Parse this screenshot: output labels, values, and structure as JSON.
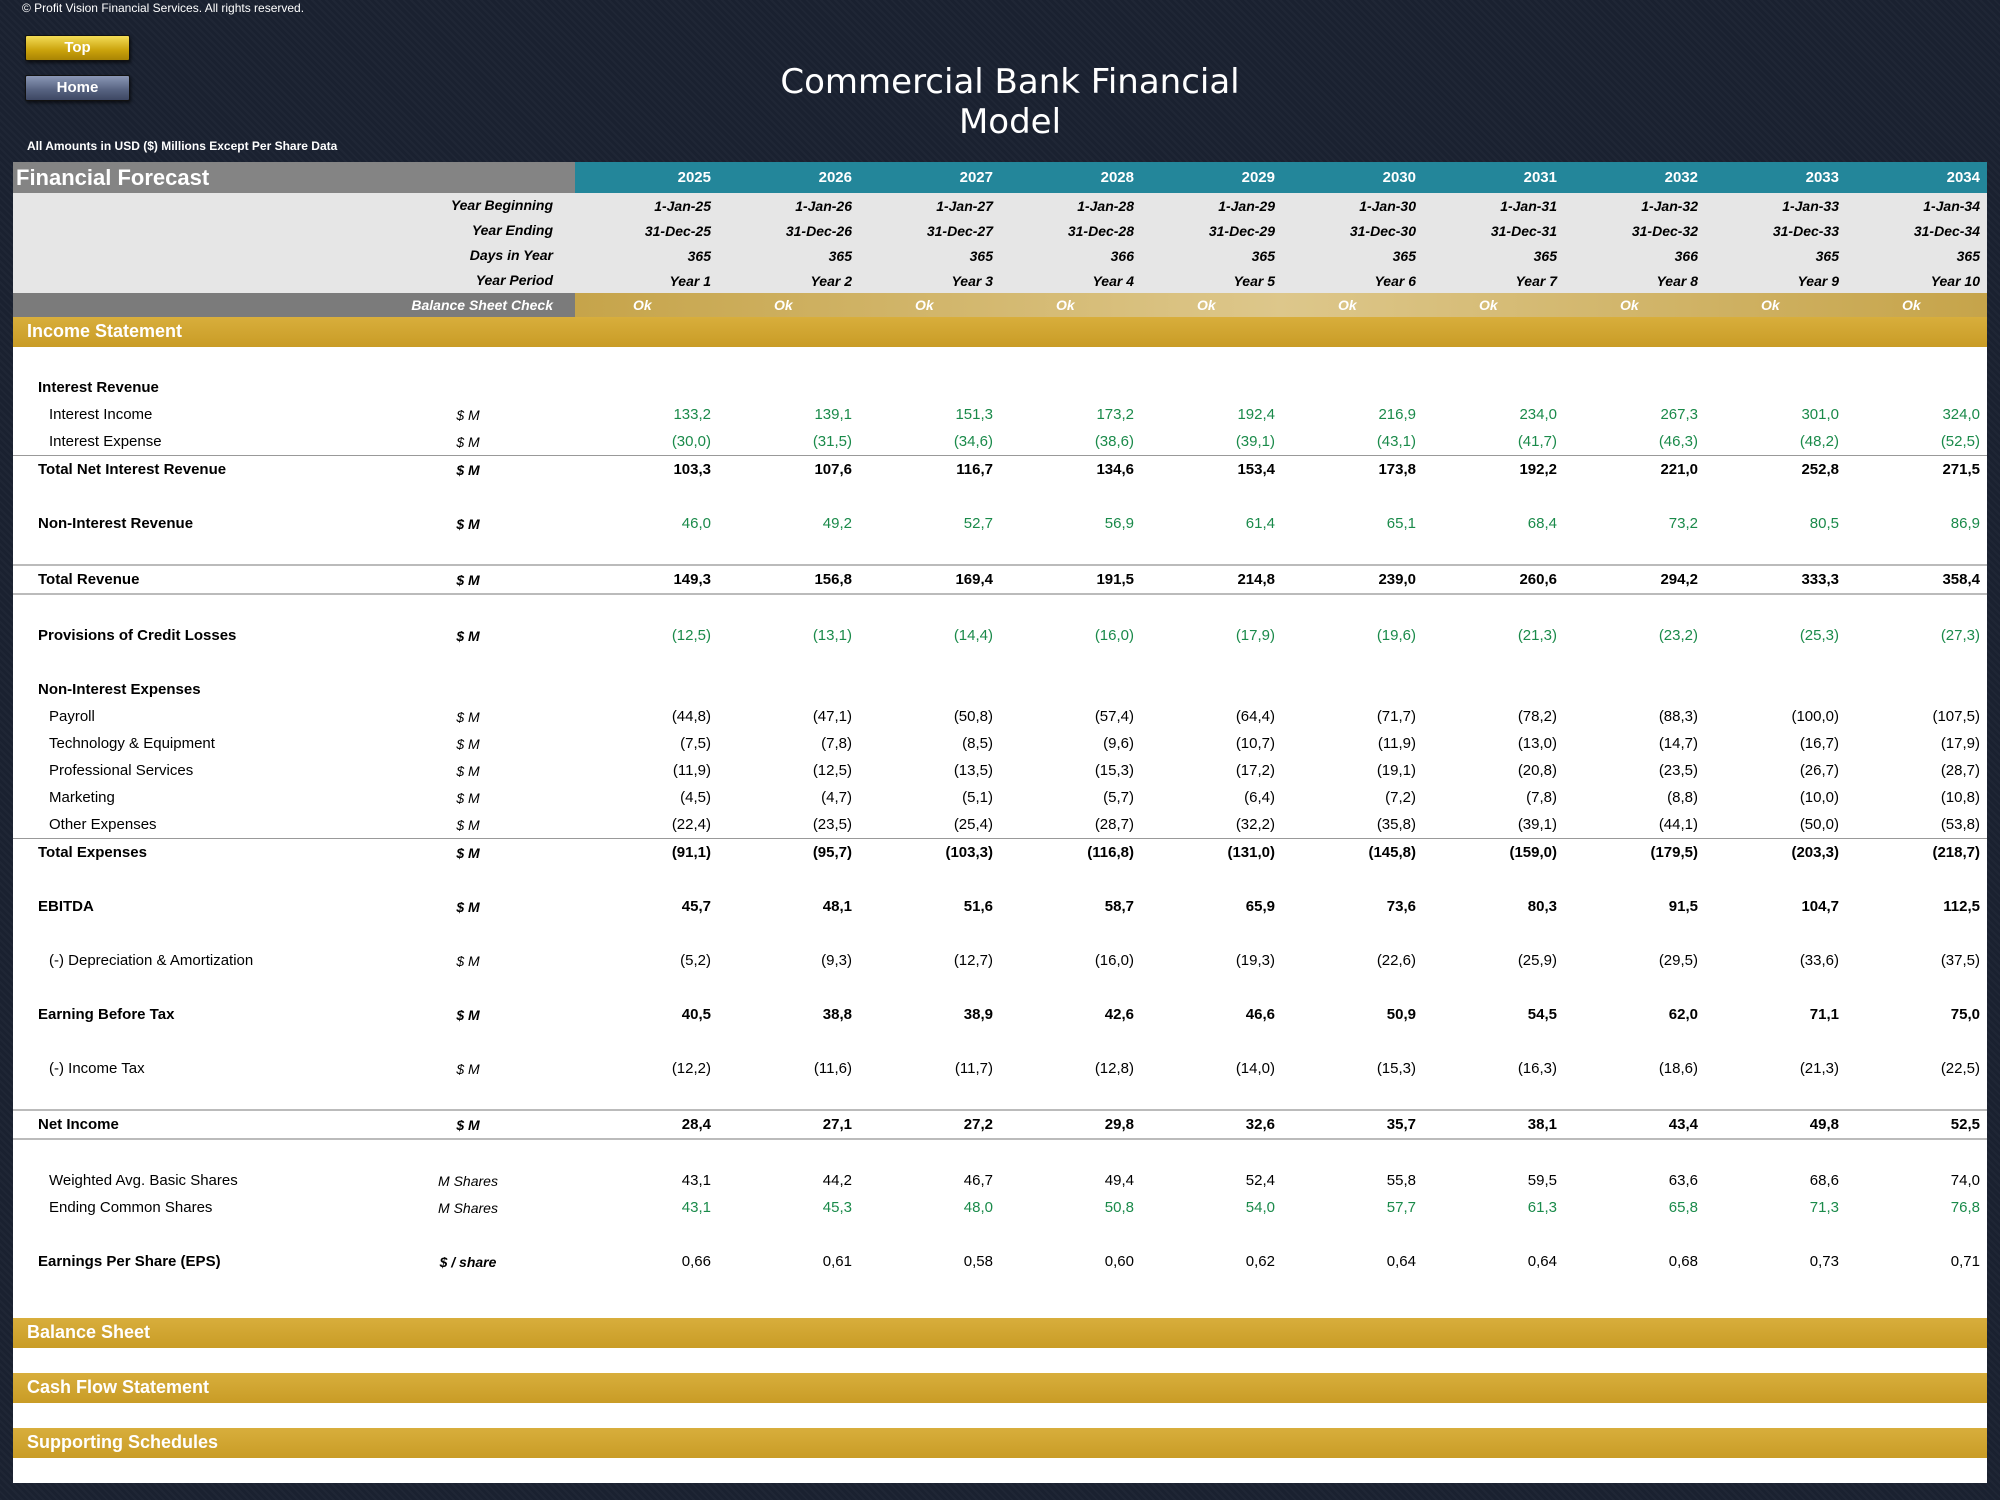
{
  "header": {
    "copyright": "© Profit Vision Financial Services. All rights reserved.",
    "top_button": "Top",
    "home_button": "Home",
    "title": "Commercial Bank Financial Model",
    "units_note": "All Amounts in  USD ($) Millions Except Per Share Data"
  },
  "forecast": {
    "title": "Financial Forecast",
    "years": [
      "2025",
      "2026",
      "2027",
      "2028",
      "2029",
      "2030",
      "2031",
      "2032",
      "2033",
      "2034"
    ],
    "info_rows": [
      {
        "label": "Year Beginning",
        "values": [
          "1-Jan-25",
          "1-Jan-26",
          "1-Jan-27",
          "1-Jan-28",
          "1-Jan-29",
          "1-Jan-30",
          "1-Jan-31",
          "1-Jan-32",
          "1-Jan-33",
          "1-Jan-34"
        ]
      },
      {
        "label": "Year Ending",
        "values": [
          "31-Dec-25",
          "31-Dec-26",
          "31-Dec-27",
          "31-Dec-28",
          "31-Dec-29",
          "31-Dec-30",
          "31-Dec-31",
          "31-Dec-32",
          "31-Dec-33",
          "31-Dec-34"
        ]
      },
      {
        "label": "Days in Year",
        "values": [
          "365",
          "365",
          "365",
          "366",
          "365",
          "365",
          "365",
          "366",
          "365",
          "365"
        ]
      },
      {
        "label": "Year Period",
        "values": [
          "Year 1",
          "Year 2",
          "Year 3",
          "Year 4",
          "Year 5",
          "Year 6",
          "Year 7",
          "Year 8",
          "Year 9",
          "Year 10"
        ]
      }
    ],
    "balance_check": {
      "label": "Balance Sheet Check",
      "values": [
        "Ok",
        "Ok",
        "Ok",
        "Ok",
        "Ok",
        "Ok",
        "Ok",
        "Ok",
        "Ok",
        "Ok"
      ]
    }
  },
  "income_statement": {
    "title": "Income Statement",
    "interest_revenue_heading": "Interest Revenue",
    "interest_income": {
      "label": "Interest Income",
      "unit": "$ M",
      "values": [
        "133,2",
        "139,1",
        "151,3",
        "173,2",
        "192,4",
        "216,9",
        "234,0",
        "267,3",
        "301,0",
        "324,0"
      ]
    },
    "interest_expense": {
      "label": "Interest Expense",
      "unit": "$ M",
      "values": [
        "(30,0)",
        "(31,5)",
        "(34,6)",
        "(38,6)",
        "(39,1)",
        "(43,1)",
        "(41,7)",
        "(46,3)",
        "(48,2)",
        "(52,5)"
      ]
    },
    "total_net_interest": {
      "label": "Total Net Interest Revenue",
      "unit": "$ M",
      "values": [
        "103,3",
        "107,6",
        "116,7",
        "134,6",
        "153,4",
        "173,8",
        "192,2",
        "221,0",
        "252,8",
        "271,5"
      ]
    },
    "non_interest_revenue": {
      "label": "Non-Interest Revenue",
      "unit": "$ M",
      "values": [
        "46,0",
        "49,2",
        "52,7",
        "56,9",
        "61,4",
        "65,1",
        "68,4",
        "73,2",
        "80,5",
        "86,9"
      ]
    },
    "total_revenue": {
      "label": "Total Revenue",
      "unit": "$ M",
      "values": [
        "149,3",
        "156,8",
        "169,4",
        "191,5",
        "214,8",
        "239,0",
        "260,6",
        "294,2",
        "333,3",
        "358,4"
      ]
    },
    "provisions": {
      "label": "Provisions of Credit Losses",
      "unit": "$ M",
      "values": [
        "(12,5)",
        "(13,1)",
        "(14,4)",
        "(16,0)",
        "(17,9)",
        "(19,6)",
        "(21,3)",
        "(23,2)",
        "(25,3)",
        "(27,3)"
      ]
    },
    "non_interest_expenses_heading": "Non-Interest Expenses",
    "payroll": {
      "label": "Payroll",
      "unit": "$ M",
      "values": [
        "(44,8)",
        "(47,1)",
        "(50,8)",
        "(57,4)",
        "(64,4)",
        "(71,7)",
        "(78,2)",
        "(88,3)",
        "(100,0)",
        "(107,5)"
      ]
    },
    "technology": {
      "label": "Technology & Equipment",
      "unit": "$ M",
      "values": [
        "(7,5)",
        "(7,8)",
        "(8,5)",
        "(9,6)",
        "(10,7)",
        "(11,9)",
        "(13,0)",
        "(14,7)",
        "(16,7)",
        "(17,9)"
      ]
    },
    "professional": {
      "label": "Professional Services",
      "unit": "$ M",
      "values": [
        "(11,9)",
        "(12,5)",
        "(13,5)",
        "(15,3)",
        "(17,2)",
        "(19,1)",
        "(20,8)",
        "(23,5)",
        "(26,7)",
        "(28,7)"
      ]
    },
    "marketing": {
      "label": "Marketing",
      "unit": "$ M",
      "values": [
        "(4,5)",
        "(4,7)",
        "(5,1)",
        "(5,7)",
        "(6,4)",
        "(7,2)",
        "(7,8)",
        "(8,8)",
        "(10,0)",
        "(10,8)"
      ]
    },
    "other_expenses": {
      "label": "Other Expenses",
      "unit": "$ M",
      "values": [
        "(22,4)",
        "(23,5)",
        "(25,4)",
        "(28,7)",
        "(32,2)",
        "(35,8)",
        "(39,1)",
        "(44,1)",
        "(50,0)",
        "(53,8)"
      ]
    },
    "total_expenses": {
      "label": "Total Expenses",
      "unit": "$ M",
      "values": [
        "(91,1)",
        "(95,7)",
        "(103,3)",
        "(116,8)",
        "(131,0)",
        "(145,8)",
        "(159,0)",
        "(179,5)",
        "(203,3)",
        "(218,7)"
      ]
    },
    "ebitda": {
      "label": "EBITDA",
      "unit": "$ M",
      "values": [
        "45,7",
        "48,1",
        "51,6",
        "58,7",
        "65,9",
        "73,6",
        "80,3",
        "91,5",
        "104,7",
        "112,5"
      ]
    },
    "depreciation": {
      "label": "(-) Depreciation & Amortization",
      "unit": "$ M",
      "values": [
        "(5,2)",
        "(9,3)",
        "(12,7)",
        "(16,0)",
        "(19,3)",
        "(22,6)",
        "(25,9)",
        "(29,5)",
        "(33,6)",
        "(37,5)"
      ]
    },
    "ebt": {
      "label": "Earning Before Tax",
      "unit": "$ M",
      "values": [
        "40,5",
        "38,8",
        "38,9",
        "42,6",
        "46,6",
        "50,9",
        "54,5",
        "62,0",
        "71,1",
        "75,0"
      ]
    },
    "income_tax": {
      "label": "(-) Income Tax",
      "unit": "$ M",
      "values": [
        "(12,2)",
        "(11,6)",
        "(11,7)",
        "(12,8)",
        "(14,0)",
        "(15,3)",
        "(16,3)",
        "(18,6)",
        "(21,3)",
        "(22,5)"
      ]
    },
    "net_income": {
      "label": "Net Income",
      "unit": "$ M",
      "values": [
        "28,4",
        "27,1",
        "27,2",
        "29,8",
        "32,6",
        "35,7",
        "38,1",
        "43,4",
        "49,8",
        "52,5"
      ]
    },
    "weighted_shares": {
      "label": "Weighted Avg. Basic Shares",
      "unit": "M Shares",
      "values": [
        "43,1",
        "44,2",
        "46,7",
        "49,4",
        "52,4",
        "55,8",
        "59,5",
        "63,6",
        "68,6",
        "74,0"
      ]
    },
    "ending_shares": {
      "label": "Ending Common Shares",
      "unit": "M Shares",
      "values": [
        "43,1",
        "45,3",
        "48,0",
        "50,8",
        "54,0",
        "57,7",
        "61,3",
        "65,8",
        "71,3",
        "76,8"
      ]
    },
    "eps": {
      "label": "Earnings Per Share (EPS)",
      "unit": "$ / share",
      "values": [
        "0,66",
        "0,61",
        "0,58",
        "0,60",
        "0,62",
        "0,64",
        "0,64",
        "0,68",
        "0,73",
        "0,71"
      ]
    }
  },
  "sections": {
    "balance_sheet": "Balance Sheet",
    "cash_flow": "Cash Flow Statement",
    "supporting": "Supporting Schedules"
  }
}
